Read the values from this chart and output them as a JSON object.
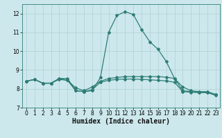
{
  "x": [
    0,
    1,
    2,
    3,
    4,
    5,
    6,
    7,
    8,
    9,
    10,
    11,
    12,
    13,
    14,
    15,
    16,
    17,
    18,
    19,
    20,
    21,
    22,
    23
  ],
  "line1": [
    8.4,
    8.5,
    8.3,
    8.3,
    8.55,
    8.55,
    7.9,
    7.85,
    7.9,
    8.6,
    11.0,
    11.9,
    12.1,
    11.95,
    11.15,
    10.5,
    10.1,
    9.45,
    8.55,
    8.1,
    7.9,
    7.85,
    7.85,
    7.7
  ],
  "line2": [
    8.4,
    8.5,
    8.3,
    8.3,
    8.5,
    8.45,
    8.05,
    7.9,
    8.1,
    8.4,
    8.55,
    8.6,
    8.65,
    8.65,
    8.65,
    8.65,
    8.65,
    8.62,
    8.55,
    7.9,
    7.85,
    7.82,
    7.82,
    7.7
  ],
  "line3": [
    8.4,
    8.5,
    8.3,
    8.3,
    8.55,
    8.45,
    7.9,
    7.85,
    7.95,
    8.35,
    8.45,
    8.5,
    8.52,
    8.52,
    8.5,
    8.48,
    8.45,
    8.42,
    8.35,
    7.85,
    7.82,
    7.8,
    7.8,
    7.65
  ],
  "background_color": "#cce8ec",
  "grid_color": "#afd0d4",
  "line_color": "#2e7d76",
  "ylim": [
    7,
    12.5
  ],
  "xlim": [
    -0.5,
    23.5
  ],
  "yticks": [
    7,
    8,
    9,
    10,
    11,
    12
  ],
  "xticks": [
    0,
    1,
    2,
    3,
    4,
    5,
    6,
    7,
    8,
    9,
    10,
    11,
    12,
    13,
    14,
    15,
    16,
    17,
    18,
    19,
    20,
    21,
    22,
    23
  ],
  "xlabel": "Humidex (Indice chaleur)",
  "xlabel_fontsize": 7,
  "tick_fontsize": 5.5,
  "marker": "D",
  "markersize": 2.0,
  "linewidth": 0.9
}
